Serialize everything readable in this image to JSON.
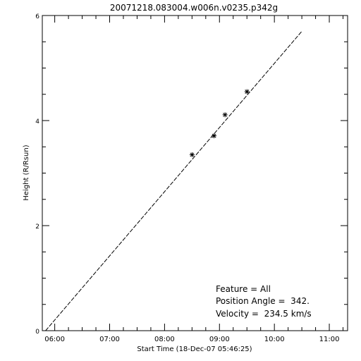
{
  "chart_data": {
    "type": "scatter",
    "title": "20071218.083004.w006n.v0235.p342g",
    "xlabel": "Start Time (18-Dec-07 05:46:25)",
    "ylabel": "Height (R/Rsun)",
    "xlim": [
      "05:46:25",
      "11:20:00"
    ],
    "ylim": [
      0,
      6
    ],
    "x_ticks": [
      "06:00",
      "07:00",
      "08:00",
      "09:00",
      "10:00",
      "11:00"
    ],
    "y_ticks": [
      "0",
      "2",
      "4",
      "6"
    ],
    "points": [
      {
        "x": "08:30:04",
        "y": 3.35
      },
      {
        "x": "08:54:04",
        "y": 3.71
      },
      {
        "x": "09:06:04",
        "y": 4.11
      },
      {
        "x": "09:30:04",
        "y": 4.55
      }
    ],
    "fit_line": {
      "style": "dashed",
      "start": {
        "x": "05:50:00",
        "y": 0.0
      },
      "end": {
        "x": "10:30:00",
        "y": 5.7
      }
    },
    "annotations": {
      "feature": "Feature = All",
      "position_angle": "Position Angle =  342.",
      "velocity": "Velocity =  234.5 km/s"
    },
    "grid": false,
    "marker": "asterisk"
  }
}
